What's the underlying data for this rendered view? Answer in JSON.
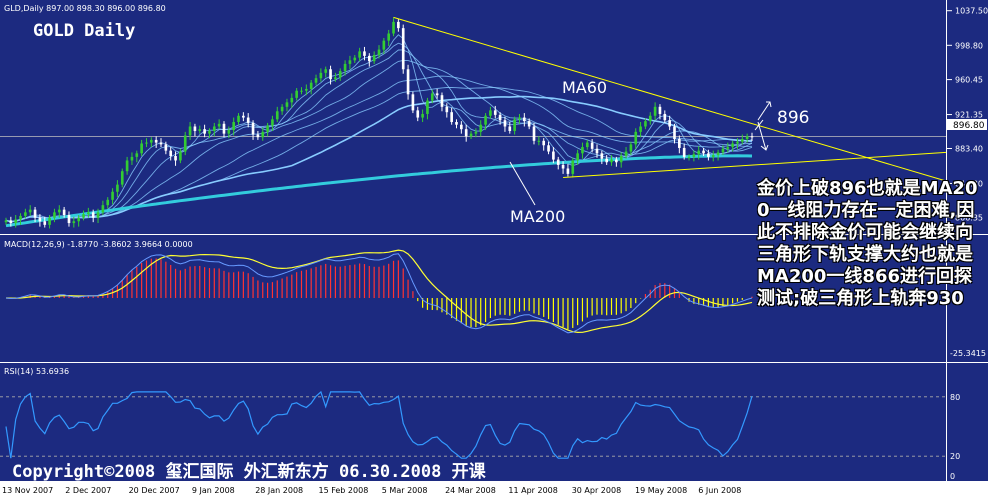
{
  "chart_data": [
    {
      "type": "candlestick",
      "panel": "price",
      "header": "GLD,Daily  897.00 898.30 896.00 896.80",
      "title": "GOLD Daily",
      "current_value": "896.80",
      "y_ticks": [
        "1037.50",
        "998.80",
        "960.45",
        "921.35",
        "883.40",
        "844.30",
        "806.35"
      ],
      "ylim": [
        790,
        1045
      ],
      "x_ticks": [
        "13 Nov 2007",
        "2 Dec 2007",
        "20 Dec 2007",
        "9 Jan 2008",
        "28 Jan 2008",
        "15 Feb 2008",
        "5 Mar 2008",
        "24 Mar 2008",
        "11 Apr 2008",
        "30 Apr 2008",
        "19 May 2008",
        "6 Jun 2008"
      ],
      "labels": {
        "ma60": "MA60",
        "ma200": "MA200",
        "target": "896"
      },
      "closes": [
        803,
        800,
        804,
        808,
        812,
        815,
        806,
        802,
        798,
        806,
        812,
        815,
        809,
        800,
        802,
        806,
        810,
        812,
        806,
        812,
        820,
        826,
        835,
        843,
        858,
        870,
        874,
        878,
        889,
        890,
        893,
        890,
        888,
        881,
        875,
        870,
        880,
        898,
        908,
        903,
        905,
        900,
        903,
        908,
        911,
        900,
        904,
        913,
        920,
        918,
        912,
        899,
        896,
        902,
        909,
        916,
        925,
        930,
        935,
        940,
        948,
        948,
        950,
        957,
        962,
        968,
        972,
        961,
        963,
        970,
        978,
        982,
        985,
        992,
        987,
        981,
        988,
        994,
        1004,
        1012,
        1025,
        1018,
        972,
        944,
        926,
        918,
        922,
        937,
        945,
        943,
        930,
        924,
        913,
        910,
        905,
        897,
        900,
        902,
        910,
        920,
        926,
        921,
        915,
        908,
        903,
        916,
        918,
        914,
        908,
        892,
        892,
        887,
        880,
        871,
        865,
        861,
        855,
        870,
        878,
        885,
        890,
        883,
        878,
        872,
        868,
        871,
        868,
        875,
        880,
        888,
        902,
        908,
        914,
        920,
        930,
        922,
        915,
        908,
        894,
        884,
        874,
        874,
        877,
        881,
        878,
        874,
        876,
        879,
        883,
        885,
        889,
        891,
        894,
        897,
        896.8
      ]
    },
    {
      "type": "macd",
      "panel": "macd",
      "header": "MACD(12,26,9) -1.8770 -3.8602 3.9664 0.0000",
      "y_ticks": [
        "-25.3415"
      ]
    },
    {
      "type": "line",
      "panel": "rsi",
      "header": "RSI(14) 53.6936",
      "levels": [
        80,
        20
      ],
      "y_ticks": [
        "80",
        "20",
        "0"
      ]
    }
  ],
  "annotation": "金价上破896也就是MA200一线阻力存在一定困难,因此不排除金价可能会继续向三角形下轨支撑大约也就是MA200一线866进行回探测试;破三角形上轨奔930",
  "copyright": "Copyright©2008 玺汇国际 外汇新东方 06.30.2008 开课",
  "colors": {
    "background": "#1c2a80",
    "bull_candle": "#33cc33",
    "bear_candle": "#ffffff",
    "ma_fast": "#88ccff",
    "ma200": "#33ccdd",
    "trendline": "#ffff00",
    "macd_pos": "#ff3333",
    "macd_neg": "#ffff00",
    "rsi_line": "#3399ff",
    "text": "#ffffff"
  }
}
